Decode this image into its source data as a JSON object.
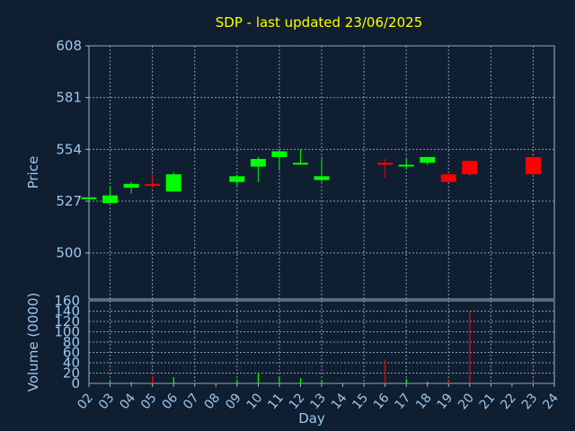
{
  "chart_data": {
    "title": "SDP - last updated 23/06/2025",
    "price_panel": {
      "type": "candlestick",
      "ylabel": "Price",
      "ylim": [
        476,
        608
      ],
      "yticks": [
        608,
        581,
        554,
        527,
        500
      ],
      "grid": true
    },
    "volume_panel": {
      "type": "bar",
      "ylabel": "Volume (0000)",
      "ylim": [
        0,
        160
      ],
      "yticks": [
        0,
        20,
        40,
        60,
        80,
        100,
        120,
        140,
        160
      ],
      "grid": true
    },
    "xlabel": "Day",
    "x_tick_labels": [
      "02",
      "03",
      "04",
      "05",
      "06",
      "07",
      "08",
      "09",
      "10",
      "11",
      "12",
      "13",
      "14",
      "15",
      "16",
      "17",
      "18",
      "19",
      "20",
      "21",
      "22",
      "23",
      "24"
    ],
    "candles": [
      {
        "day": "02",
        "open": 529,
        "close": 529,
        "high": 530,
        "low": 529,
        "volume": 1
      },
      {
        "day": "03",
        "open": 526,
        "close": 530,
        "high": 535,
        "low": 526,
        "volume": 4
      },
      {
        "day": "04",
        "open": 534,
        "close": 536,
        "high": 537,
        "low": 531,
        "volume": 3
      },
      {
        "day": "05",
        "open": 536,
        "close": 535,
        "high": 541,
        "low": 534,
        "volume": 14
      },
      {
        "day": "06",
        "open": 532,
        "close": 541,
        "high": 542,
        "low": 532,
        "volume": 12
      },
      {
        "day": "09",
        "open": 537,
        "close": 540,
        "high": 541,
        "low": 535,
        "volume": 8
      },
      {
        "day": "10",
        "open": 545,
        "close": 549,
        "high": 550,
        "low": 537,
        "volume": 20
      },
      {
        "day": "11",
        "open": 550,
        "close": 553,
        "high": 554,
        "low": 543,
        "volume": 12
      },
      {
        "day": "12",
        "open": 547,
        "close": 547,
        "high": 554,
        "low": 546,
        "volume": 10
      },
      {
        "day": "13",
        "open": 538,
        "close": 540,
        "high": 550,
        "low": 537,
        "volume": 6
      },
      {
        "day": "16",
        "open": 547,
        "close": 546,
        "high": 549,
        "low": 539,
        "volume": 46
      },
      {
        "day": "17",
        "open": 546,
        "close": 546,
        "high": 549,
        "low": 544,
        "volume": 8
      },
      {
        "day": "18",
        "open": 547,
        "close": 550,
        "high": 550,
        "low": 546,
        "volume": 4
      },
      {
        "day": "19",
        "open": 541,
        "close": 537,
        "high": 541,
        "low": 537,
        "volume": 6
      },
      {
        "day": "20",
        "open": 548,
        "close": 541,
        "high": 549,
        "low": 540,
        "volume": 140
      },
      {
        "day": "23",
        "open": 550,
        "close": 541,
        "high": 550,
        "low": 541,
        "volume": 4
      }
    ],
    "colors": {
      "background": "#0f1e30",
      "up": "#00ff00",
      "down": "#ff0000",
      "title": "#ffff00",
      "axis_text": "#9ec8ee",
      "grid": "#8a9aac",
      "frame": "#a0b4c8"
    }
  }
}
